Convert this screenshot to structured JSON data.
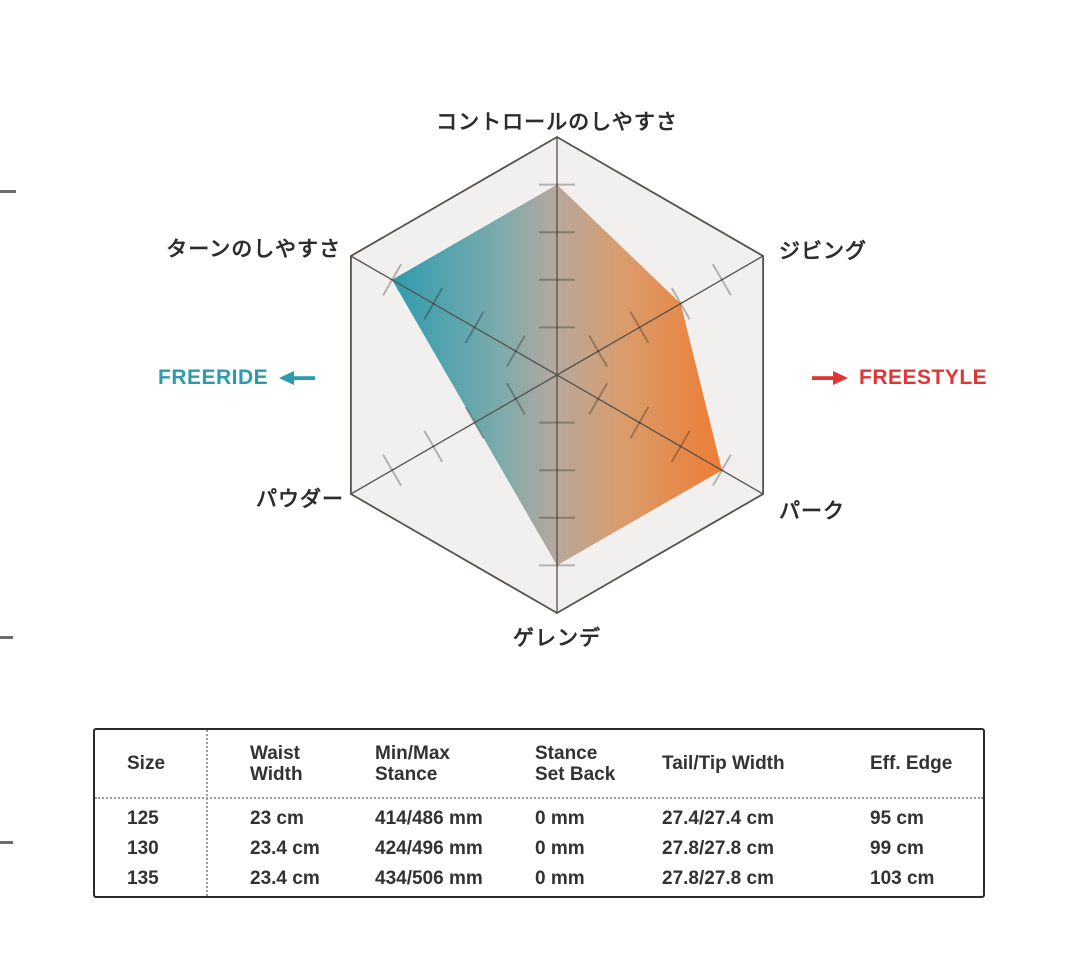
{
  "chart": {
    "freeride": {
      "label": "FREERIDE",
      "color": "#2a9cae"
    },
    "freestyle": {
      "label": "FREESTYLE",
      "color": "#e23434"
    }
  },
  "chart_data": {
    "type": "radar",
    "shape": "hexagon",
    "categories": [
      "コントロールのしやすさ",
      "ジビング",
      "パーク",
      "ゲレンデ",
      "パウダー",
      "ターンのしやすさ"
    ],
    "values": [
      4,
      3,
      4,
      4,
      2,
      4
    ],
    "scale": {
      "min": 0,
      "max": 5,
      "ticks_per_axis": 4
    },
    "gradient": {
      "left": "#1f96a9",
      "mid": "#b2a296",
      "right": "#ec7426"
    },
    "annotations": [
      {
        "label": "FREERIDE",
        "direction": "left",
        "color": "#2a9cae"
      },
      {
        "label": "FREESTYLE",
        "direction": "right",
        "color": "#e23434"
      }
    ],
    "legend_position": "sides",
    "grid": "ticks-on-axes"
  },
  "table": {
    "columns": [
      "Size",
      "Waist\nWidth",
      "Min/Max\nStance",
      "Stance\nSet Back",
      "Tail/Tip Width",
      "Eff. Edge"
    ],
    "rows": [
      [
        "125",
        "23 cm",
        "414/486 mm",
        "0 mm",
        "27.4/27.4 cm",
        "95 cm"
      ],
      [
        "130",
        "23.4 cm",
        "424/496 mm",
        "0 mm",
        "27.8/27.8 cm",
        "99 cm"
      ],
      [
        "135",
        "23.4 cm",
        "434/506 mm",
        "0 mm",
        "27.8/27.8 cm",
        "103 cm"
      ]
    ]
  }
}
